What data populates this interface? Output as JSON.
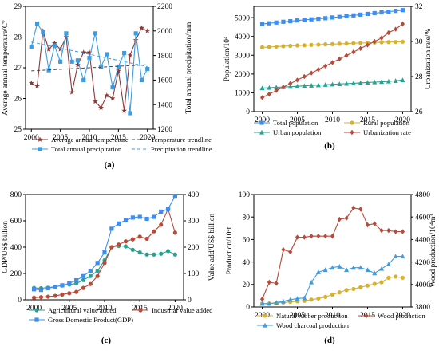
{
  "chart_data": [
    {
      "id": "a",
      "panel_label": "(a)",
      "type": "line",
      "x": [
        2000,
        2001,
        2002,
        2003,
        2004,
        2005,
        2006,
        2007,
        2008,
        2009,
        2010,
        2011,
        2012,
        2013,
        2014,
        2015,
        2016,
        2017,
        2018,
        2019,
        2020
      ],
      "x_ticks": [
        2000,
        2005,
        2010,
        2015,
        2020
      ],
      "xlim": [
        1999,
        2021
      ],
      "y_left": {
        "label": "Average annual temperature/C°",
        "lim": [
          25,
          29
        ],
        "ticks": [
          25,
          26,
          27,
          28,
          29
        ]
      },
      "y_right": {
        "label": "Total annual precipitation/mm",
        "lim": [
          1200,
          2200
        ],
        "ticks": [
          1200,
          1400,
          1600,
          1800,
          2000,
          2200
        ]
      },
      "series": [
        {
          "name": "Average annual temperature",
          "axis": "left",
          "color": "#8b3a3a",
          "marker": "star",
          "values": [
            26.5,
            26.4,
            28.2,
            27.6,
            27.8,
            27.6,
            28.0,
            26.2,
            27.1,
            27.5,
            27.5,
            25.9,
            25.7,
            26.1,
            26.0,
            26.9,
            25.6,
            27.4,
            27.9,
            28.3,
            28.2
          ]
        },
        {
          "name": "Total annual precipitation",
          "axis": "right",
          "color": "#3d9de0",
          "marker": "square",
          "values": [
            1870,
            2060,
            1990,
            1680,
            1880,
            1750,
            1980,
            1750,
            1760,
            1600,
            1780,
            1980,
            1710,
            1810,
            1540,
            1710,
            1820,
            1330,
            1980,
            1600,
            1690
          ]
        },
        {
          "name": "Temperature trendline",
          "axis": "left",
          "color": "#444444",
          "dash": true,
          "values_at_ends": [
            26.9,
            27.1
          ]
        },
        {
          "name": "Precipitation trendline",
          "axis": "right",
          "color": "#3d9de0",
          "dash": true,
          "values_at_ends": [
            1910,
            1710
          ]
        }
      ]
    },
    {
      "id": "b",
      "panel_label": "(b)",
      "type": "line",
      "x": [
        2000,
        2001,
        2002,
        2003,
        2004,
        2005,
        2006,
        2007,
        2008,
        2009,
        2010,
        2011,
        2012,
        2013,
        2014,
        2015,
        2016,
        2017,
        2018,
        2019,
        2020
      ],
      "x_ticks": [
        2000,
        2005,
        2010,
        2015,
        2020
      ],
      "xlim": [
        1998.8,
        2021.2
      ],
      "y_left": {
        "label": "Population/10⁴",
        "lim": [
          0,
          5600
        ],
        "ticks": [
          0,
          1000,
          2000,
          3000,
          4000,
          5000
        ]
      },
      "y_right": {
        "label": "Urbanization rate/%",
        "lim": [
          26,
          32
        ],
        "ticks": [
          26,
          28,
          30,
          32
        ]
      },
      "series": [
        {
          "name": "Total population",
          "axis": "left",
          "color": "#3d8ef0",
          "marker": "square",
          "values": [
            4660,
            4700,
            4740,
            4780,
            4810,
            4850,
            4880,
            4910,
            4940,
            4970,
            5010,
            5040,
            5080,
            5120,
            5160,
            5200,
            5240,
            5280,
            5320,
            5360,
            5400
          ]
        },
        {
          "name": "Rural population",
          "axis": "left",
          "color": "#d8b030",
          "marker": "circle",
          "values": [
            3420,
            3440,
            3460,
            3480,
            3500,
            3520,
            3530,
            3550,
            3560,
            3580,
            3590,
            3610,
            3620,
            3640,
            3650,
            3660,
            3680,
            3690,
            3700,
            3710,
            3720
          ]
        },
        {
          "name": "Urban population",
          "axis": "left",
          "color": "#2aa090",
          "marker": "triangle",
          "values": [
            1250,
            1270,
            1290,
            1310,
            1330,
            1350,
            1370,
            1390,
            1410,
            1430,
            1450,
            1470,
            1490,
            1510,
            1530,
            1550,
            1570,
            1590,
            1610,
            1640,
            1680
          ]
        },
        {
          "name": "Urbanization rate",
          "axis": "right",
          "color": "#b84a3a",
          "marker": "diamond",
          "values": [
            26.8,
            27.0,
            27.2,
            27.4,
            27.6,
            27.8,
            28.0,
            28.2,
            28.4,
            28.6,
            28.8,
            29.0,
            29.2,
            29.4,
            29.6,
            29.8,
            30.0,
            30.2,
            30.5,
            30.7,
            31.0
          ]
        }
      ]
    },
    {
      "id": "c",
      "panel_label": "(c)",
      "type": "line",
      "x": [
        2000,
        2001,
        2002,
        2003,
        2004,
        2005,
        2006,
        2007,
        2008,
        2009,
        2010,
        2011,
        2012,
        2013,
        2014,
        2015,
        2016,
        2017,
        2018,
        2019,
        2020
      ],
      "x_ticks": [
        2000,
        2005,
        2010,
        2015,
        2020
      ],
      "xlim": [
        1998.8,
        2021.2
      ],
      "y_left": {
        "label": "GDP/US$ billion",
        "lim": [
          0,
          800
        ],
        "ticks": [
          0,
          200,
          400,
          600,
          800
        ]
      },
      "y_right": {
        "label": "Value add/US$ billion",
        "lim": [
          0,
          400
        ],
        "ticks": [
          0,
          100,
          200,
          300,
          400
        ]
      },
      "series": [
        {
          "name": "Agricultural value added",
          "axis": "right",
          "color": "#2aa090",
          "marker": "circle",
          "values": [
            45,
            44,
            46,
            50,
            54,
            58,
            62,
            75,
            90,
            110,
            150,
            200,
            205,
            203,
            190,
            180,
            172,
            172,
            175,
            185,
            172
          ]
        },
        {
          "name": "Industrial value added",
          "axis": "right",
          "color": "#b84a3a",
          "marker": "circle",
          "values": [
            8,
            10,
            12,
            15,
            20,
            25,
            30,
            45,
            60,
            90,
            140,
            200,
            210,
            222,
            230,
            240,
            232,
            260,
            285,
            345,
            255
          ]
        },
        {
          "name": "Gross Domestic Product(GDP)",
          "axis": "left",
          "color": "#3d8ef0",
          "marker": "square",
          "values": [
            80,
            75,
            88,
            98,
            110,
            125,
            148,
            180,
            220,
            280,
            360,
            540,
            580,
            605,
            625,
            630,
            615,
            630,
            670,
            690,
            790
          ]
        }
      ]
    },
    {
      "id": "d",
      "panel_label": "(d)",
      "type": "line",
      "x": [
        2000,
        2001,
        2002,
        2003,
        2004,
        2005,
        2006,
        2007,
        2008,
        2009,
        2010,
        2011,
        2012,
        2013,
        2014,
        2015,
        2016,
        2017,
        2018,
        2019,
        2020
      ],
      "x_ticks": [
        2000,
        2005,
        2010,
        2015,
        2020
      ],
      "xlim": [
        1998.8,
        2021.2
      ],
      "y_left": {
        "label": "Production/10⁴t",
        "lim": [
          0,
          100
        ],
        "ticks": [
          0,
          20,
          40,
          60,
          80,
          100
        ]
      },
      "y_right": {
        "label": "Wood production/10⁴m³",
        "lim": [
          3800,
          4800
        ],
        "ticks": [
          3800,
          4000,
          4200,
          4400,
          4600,
          4800
        ]
      },
      "series": [
        {
          "name": "Natural rubber production",
          "axis": "left",
          "color": "#d8b030",
          "marker": "circle",
          "values": [
            3,
            3,
            3.5,
            4,
            4.5,
            5,
            5.5,
            6.5,
            7.5,
            9,
            11,
            13,
            15,
            16,
            17.5,
            19,
            20.5,
            22,
            26,
            27,
            26
          ]
        },
        {
          "name": "Wood production",
          "axis": "right",
          "color": "#b84a3a",
          "marker": "diamond",
          "values": [
            3870,
            4020,
            4010,
            4310,
            4290,
            4420,
            4420,
            4430,
            4430,
            4430,
            4430,
            4580,
            4590,
            4680,
            4670,
            4530,
            4540,
            4480,
            4480,
            4470,
            4470
          ]
        },
        {
          "name": "Wood charcoal production",
          "axis": "left",
          "color": "#3d9de0",
          "marker": "triangle",
          "values": [
            3,
            3,
            4,
            5,
            6.5,
            7.5,
            8,
            22,
            31,
            33,
            35,
            36,
            33,
            35,
            35,
            33,
            30,
            34,
            38,
            45,
            45
          ]
        }
      ]
    }
  ]
}
